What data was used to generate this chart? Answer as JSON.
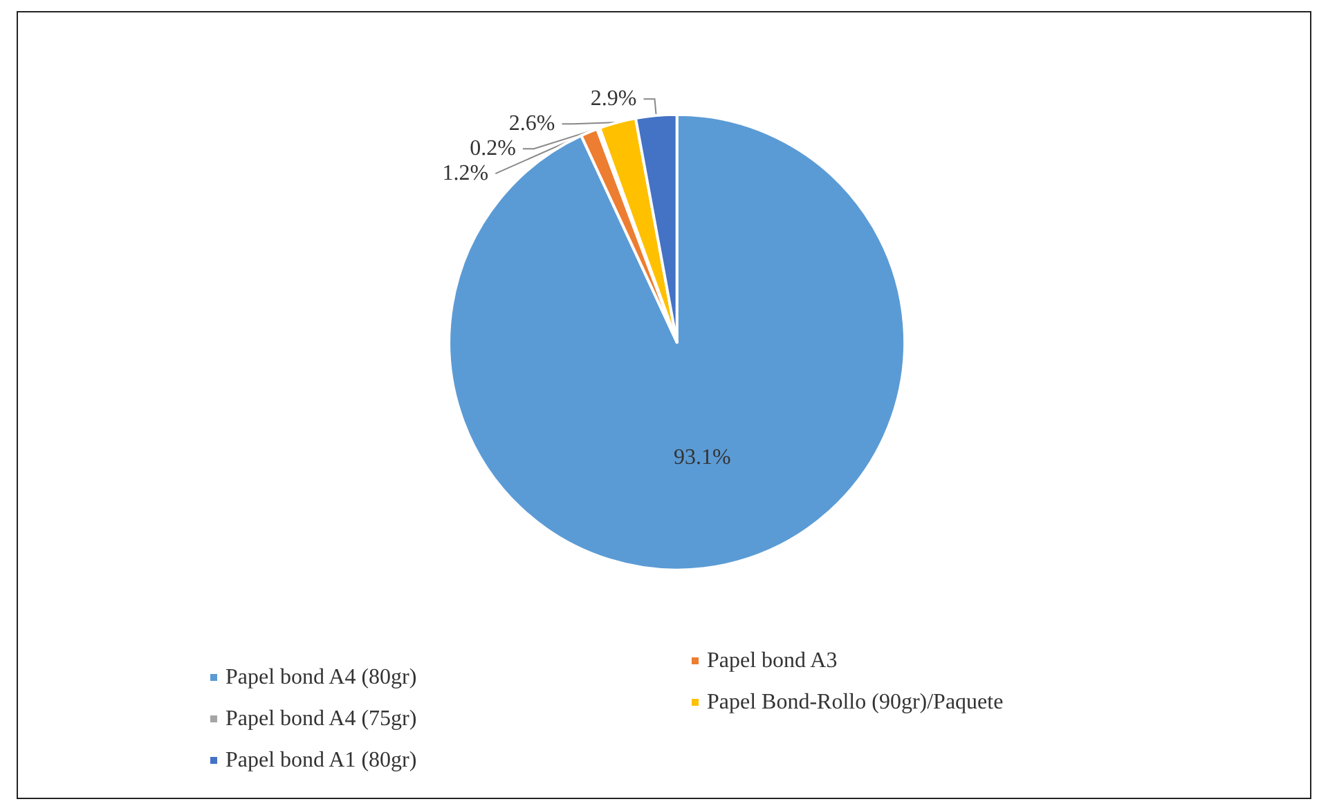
{
  "chart_data": {
    "type": "pie",
    "categories": [
      "Papel bond A4 (80gr)",
      "Papel bond A3",
      "Papel bond A4 (75gr)",
      "Papel Bond-Rollo (90gr)/Paquete",
      "Papel bond A1 (80gr)"
    ],
    "values": [
      93.1,
      1.2,
      0.2,
      2.6,
      2.9
    ],
    "colors": [
      "#5b9bd5",
      "#ed7d31",
      "#a5a5a5",
      "#ffc000",
      "#4472c4"
    ],
    "value_labels": [
      "93.1%",
      "1.2%",
      "0.2%",
      "2.6%",
      "2.9%"
    ],
    "legend": "bottom"
  }
}
